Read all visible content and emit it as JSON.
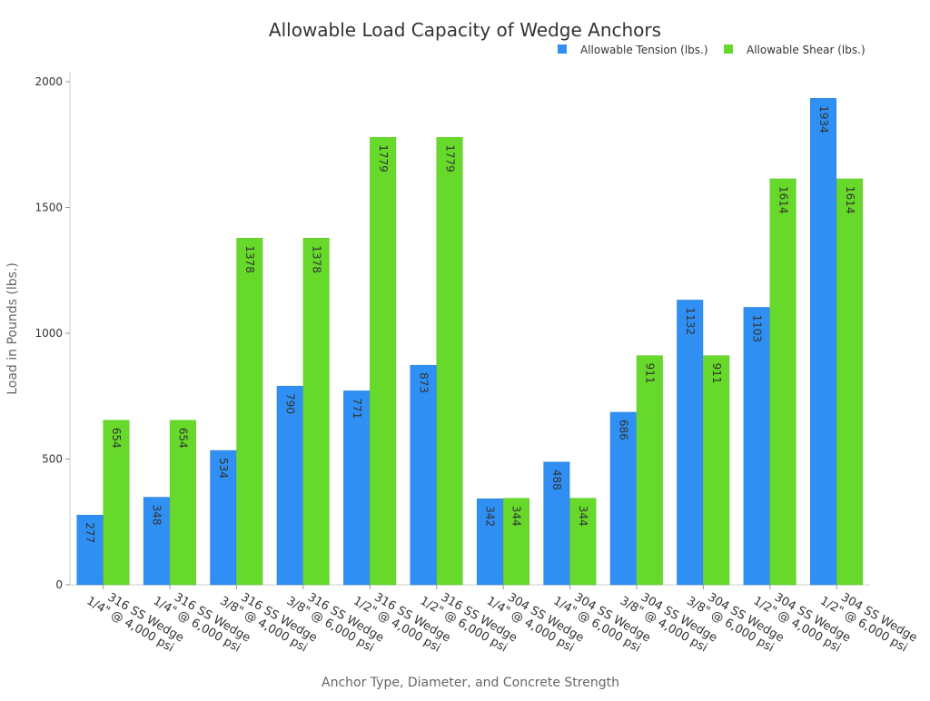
{
  "chart_data": {
    "type": "bar",
    "title": "Allowable Load Capacity of Wedge Anchors",
    "xlabel": "Anchor Type, Diameter, and Concrete Strength",
    "ylabel": "Load in Pounds (lbs.)",
    "ylim": [
      0,
      2000
    ],
    "yticks": [
      0,
      500,
      1000,
      1500,
      2000
    ],
    "legend_position": "top-right",
    "categories": [
      [
        "316 SS Wedge",
        "1/4\" @ 4,000 psi"
      ],
      [
        "316 SS Wedge",
        "1/4\" @ 6,000 psi"
      ],
      [
        "316 SS Wedge",
        "3/8\" @ 4,000 psi"
      ],
      [
        "316 SS Wedge",
        "3/8\" @ 6,000 psi"
      ],
      [
        "316 SS Wedge",
        "1/2\" @ 4,000 psi"
      ],
      [
        "316 SS Wedge",
        "1/2\" @ 6,000 psi"
      ],
      [
        "304 SS Wedge",
        "1/4\" @ 4,000 psi"
      ],
      [
        "304 SS Wedge",
        "1/4\" @ 6,000 psi"
      ],
      [
        "304 SS Wedge",
        "3/8\" @ 4,000 psi"
      ],
      [
        "304 SS Wedge",
        "3/8\" @ 6,000 psi"
      ],
      [
        "304 SS Wedge",
        "1/2\" @ 4,000 psi"
      ],
      [
        "304 SS Wedge",
        "1/2\" @ 6,000 psi"
      ]
    ],
    "series": [
      {
        "name": "Allowable Tension (lbs.)",
        "color": "#2f8ff2",
        "values": [
          277,
          348,
          534,
          790,
          771,
          873,
          342,
          488,
          686,
          1132,
          1103,
          1934
        ]
      },
      {
        "name": "Allowable Shear (lbs.)",
        "color": "#66d92a",
        "values": [
          654,
          654,
          1378,
          1378,
          1779,
          1779,
          344,
          344,
          911,
          911,
          1614,
          1614
        ]
      }
    ]
  }
}
